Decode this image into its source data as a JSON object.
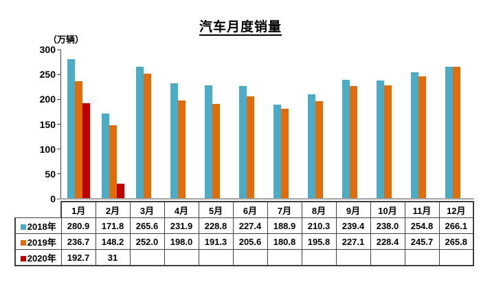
{
  "chart_data": {
    "type": "bar",
    "title": "汽车月度销量",
    "ylabel": "（万辆）",
    "xlabel": "",
    "ylim": [
      0,
      300
    ],
    "yticks": [
      0,
      50,
      100,
      150,
      200,
      250,
      300
    ],
    "grid": false,
    "legend_position": "table-left",
    "categories": [
      "1月",
      "2月",
      "3月",
      "4月",
      "5月",
      "6月",
      "7月",
      "8月",
      "9月",
      "10月",
      "11月",
      "12月"
    ],
    "series": [
      {
        "name": "2018年",
        "color": "#4BACC6",
        "values": [
          "280.9",
          "171.8",
          "265.6",
          "231.9",
          "228.8",
          "227.4",
          "188.9",
          "210.3",
          "239.4",
          "238.0",
          "254.8",
          "266.1"
        ]
      },
      {
        "name": "2019年",
        "color": "#E36C09",
        "values": [
          "236.7",
          "148.2",
          "252.0",
          "198.0",
          "191.3",
          "205.6",
          "180.8",
          "195.8",
          "227.1",
          "228.4",
          "245.7",
          "265.8"
        ]
      },
      {
        "name": "2020年",
        "color": "#C00000",
        "values": [
          "192.7",
          "31",
          "",
          "",
          "",
          "",
          "",
          "",
          "",
          "",
          "",
          ""
        ]
      }
    ],
    "colors": {
      "axis": "#3f3f3f",
      "baseline": "#a3a3a3",
      "table_border": "#3f3f3f"
    }
  }
}
